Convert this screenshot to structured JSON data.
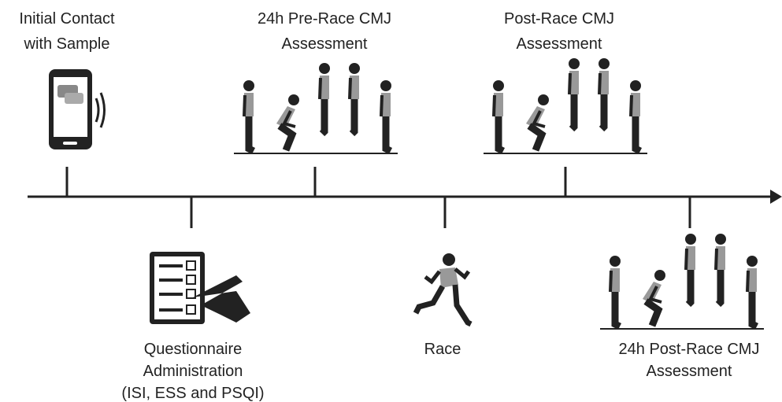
{
  "events": [
    {
      "label": [
        "Initial Contact",
        "with Sample"
      ]
    },
    {
      "label": [
        "24h Pre-Race CMJ",
        "Assessment"
      ]
    },
    {
      "label": [
        "Post-Race CMJ",
        "Assessment"
      ]
    },
    {
      "label": [
        "Questionnaire",
        "Administration",
        "(ISI, ESS and PSQI)"
      ]
    },
    {
      "label": [
        "Race"
      ]
    },
    {
      "label": [
        "24h Post-Race CMJ",
        "Assessment"
      ]
    }
  ]
}
